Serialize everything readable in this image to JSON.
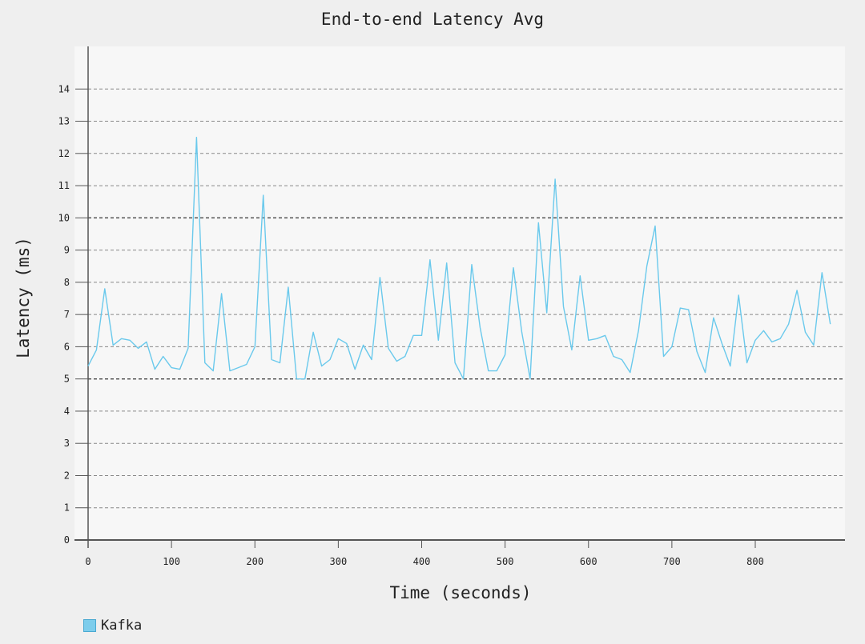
{
  "colors": {
    "background": "#efefef",
    "plot_background": "#f7f7f7",
    "series": "#6ac9ec",
    "swatch": "#7dcdec",
    "axis": "#555555",
    "grid": "#888888",
    "grid_major": "#444444"
  },
  "chart_data": {
    "type": "line",
    "title": "End-to-end Latency Avg",
    "xlabel": "Time (seconds)",
    "ylabel": "Latency (ms)",
    "xlim": [
      0,
      910
    ],
    "ylim": [
      0,
      15
    ],
    "x_ticks": [
      0,
      100,
      200,
      300,
      400,
      500,
      600,
      700,
      800
    ],
    "y_ticks": [
      0,
      1,
      2,
      3,
      4,
      5,
      6,
      7,
      8,
      9,
      10,
      11,
      12,
      13,
      14
    ],
    "y_major_gridlines": [
      5,
      10
    ],
    "grid": true,
    "legend_position": "bottom-left",
    "series": [
      {
        "name": "Kafka",
        "x": [
          0,
          10,
          20,
          30,
          40,
          50,
          60,
          70,
          80,
          90,
          100,
          110,
          120,
          130,
          140,
          150,
          160,
          170,
          180,
          190,
          200,
          210,
          220,
          230,
          240,
          250,
          260,
          270,
          280,
          290,
          300,
          310,
          320,
          330,
          340,
          350,
          360,
          370,
          380,
          390,
          400,
          410,
          420,
          430,
          440,
          450,
          460,
          470,
          480,
          490,
          500,
          510,
          520,
          530,
          540,
          550,
          560,
          570,
          580,
          590,
          600,
          610,
          620,
          630,
          640,
          650,
          660,
          670,
          680,
          690,
          700,
          710,
          720,
          730,
          740,
          750,
          760,
          770,
          780,
          790,
          800,
          810,
          820,
          830,
          840,
          850,
          860,
          870,
          880,
          890
        ],
        "y": [
          5.4,
          5.9,
          7.8,
          6.05,
          6.25,
          6.2,
          5.95,
          6.15,
          5.3,
          5.7,
          5.35,
          5.3,
          5.95,
          12.5,
          5.5,
          5.25,
          7.65,
          5.25,
          5.35,
          5.45,
          6.0,
          10.7,
          5.6,
          5.5,
          7.85,
          5.0,
          5.0,
          6.45,
          5.4,
          5.6,
          6.25,
          6.1,
          5.3,
          6.05,
          5.6,
          8.15,
          5.95,
          5.55,
          5.7,
          6.35,
          6.35,
          8.7,
          6.2,
          8.6,
          5.5,
          5.0,
          8.55,
          6.6,
          5.25,
          5.25,
          5.75,
          8.45,
          6.45,
          5.0,
          9.85,
          7.05,
          11.2,
          7.25,
          5.9,
          8.2,
          6.2,
          6.25,
          6.35,
          5.7,
          5.6,
          5.2,
          6.5,
          8.5,
          9.75,
          5.7,
          6.0,
          7.2,
          7.15,
          5.85,
          5.2,
          6.9,
          6.1,
          5.4,
          7.6,
          5.5,
          6.2,
          6.5,
          6.15,
          6.25,
          6.7,
          7.75,
          6.45,
          6.05,
          8.3,
          6.7
        ]
      }
    ]
  }
}
